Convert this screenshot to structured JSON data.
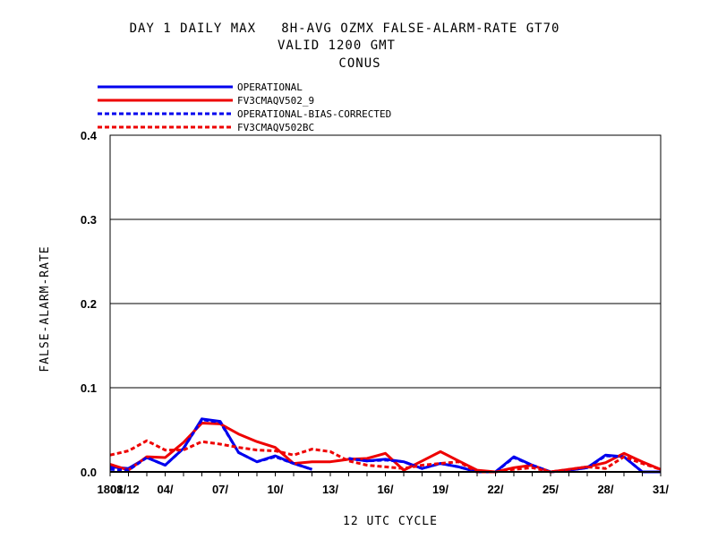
{
  "chart_data": {
    "type": "line",
    "title": "DAY 1 DAILY MAX   8H-AVG OZMX FALSE-ALARM-RATE GT70",
    "subtitle": "VALID 1200 GMT",
    "region": "CONUS",
    "xlabel": "12 UTC CYCLE",
    "ylabel": "FALSE-ALARM-RATE",
    "ylim": [
      0,
      0.4
    ],
    "yticks": [
      "0.0",
      "0.1",
      "0.2",
      "0.3",
      "0.4"
    ],
    "grid": true,
    "legend_position": "top-left",
    "x": [
      1,
      2,
      3,
      4,
      5,
      6,
      7,
      8,
      9,
      10,
      11,
      12,
      13,
      14,
      15,
      16,
      17,
      18,
      19,
      20,
      21,
      22,
      23,
      24,
      25,
      26,
      27,
      28,
      29,
      30,
      31
    ],
    "xticks": [
      {
        "day": 1,
        "label": "1808"
      },
      {
        "day": 1.8,
        "label": "01/12"
      },
      {
        "day": 4,
        "label": "04/"
      },
      {
        "day": 7,
        "label": "07/"
      },
      {
        "day": 10,
        "label": "10/"
      },
      {
        "day": 13,
        "label": "13/"
      },
      {
        "day": 16,
        "label": "16/"
      },
      {
        "day": 19,
        "label": "19/"
      },
      {
        "day": 22,
        "label": "22/"
      },
      {
        "day": 25,
        "label": "25/"
      },
      {
        "day": 28,
        "label": "28/"
      },
      {
        "day": 31,
        "label": "31/"
      }
    ],
    "series": [
      {
        "name": "OPERATIONAL",
        "color": "#0000ee",
        "dash": "solid",
        "values": [
          0.006,
          0.004,
          0.017,
          0.008,
          0.028,
          0.063,
          0.06,
          0.023,
          0.012,
          0.019,
          0.01,
          0.003,
          null,
          0.016,
          0.013,
          0.015,
          0.012,
          0.004,
          0.01,
          0.006,
          0.0,
          0.0,
          0.018,
          0.008,
          0.0,
          0.002,
          0.005,
          0.02,
          0.018,
          0.0,
          0.0
        ]
      },
      {
        "name": "FV3CMAQV502_9",
        "color": "#ee0000",
        "dash": "solid",
        "values": [
          0.009,
          0.002,
          0.018,
          0.017,
          0.035,
          0.058,
          0.057,
          0.045,
          0.036,
          0.029,
          0.01,
          0.012,
          0.012,
          0.015,
          0.016,
          0.022,
          0.002,
          0.013,
          0.024,
          0.013,
          0.002,
          0.0,
          0.005,
          0.008,
          0.0,
          0.003,
          0.006,
          0.011,
          0.022,
          0.012,
          0.003
        ]
      },
      {
        "name": "OPERATIONAL-BIAS-CORRECTED",
        "color": "#0000ee",
        "dash": "dashed",
        "values": [
          0.003,
          0.002,
          0.017,
          0.008,
          0.028,
          0.062,
          0.059,
          0.023,
          0.012,
          0.018,
          0.01,
          0.003,
          null,
          0.016,
          0.013,
          0.014,
          0.012,
          0.004,
          0.01,
          0.006,
          0.0,
          0.0,
          0.017,
          0.008,
          0.0,
          0.002,
          0.005,
          0.019,
          0.018,
          0.0,
          0.0
        ]
      },
      {
        "name": "FV3CMAQV502BC",
        "color": "#ee0000",
        "dash": "dashed",
        "values": [
          0.02,
          0.025,
          0.037,
          0.026,
          0.026,
          0.036,
          0.033,
          0.029,
          0.026,
          0.025,
          0.02,
          0.027,
          0.024,
          0.013,
          0.008,
          0.006,
          0.004,
          0.008,
          0.01,
          0.012,
          0.0,
          0.0,
          0.003,
          0.005,
          0.0,
          0.003,
          0.006,
          0.004,
          0.018,
          0.01,
          0.003
        ]
      }
    ]
  }
}
